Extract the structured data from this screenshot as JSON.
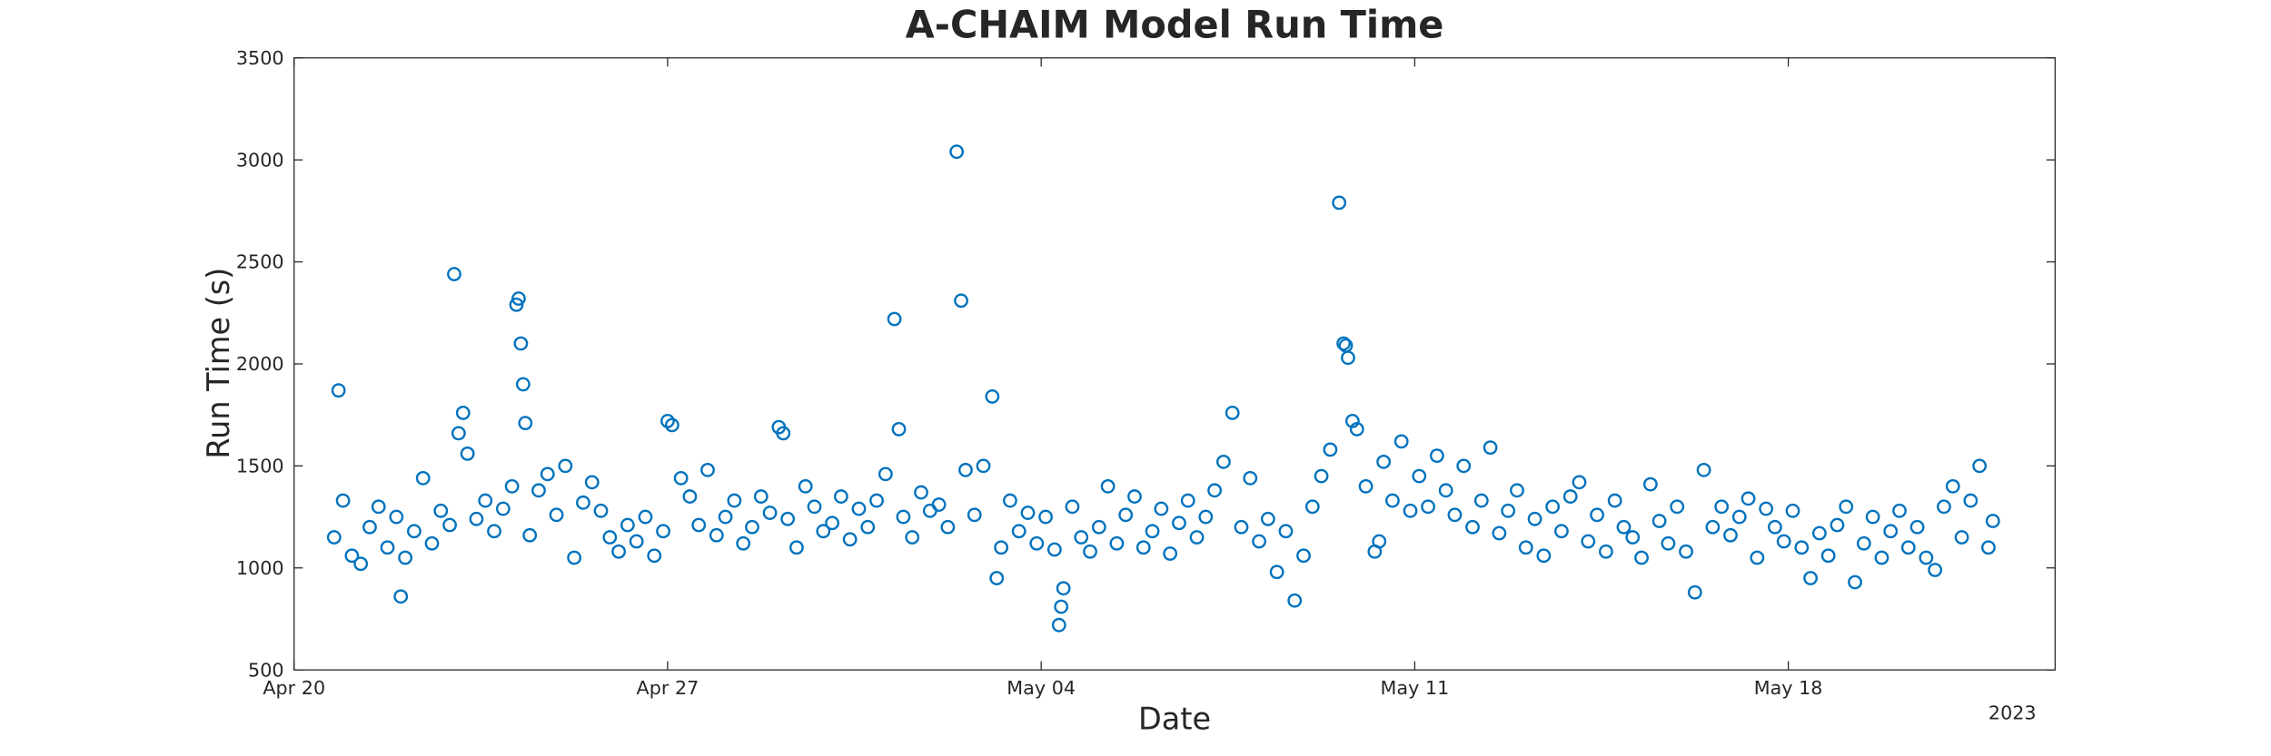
{
  "chart_data": {
    "type": "scatter",
    "title": "A-CHAIM Model Run Time",
    "x_label": "Date",
    "y_label": "Run Time (s)",
    "x_secondary_label": "2023",
    "xlim": [
      "2023-04-20T00:00Z",
      "2023-05-23T00:00Z"
    ],
    "xticks": [
      {
        "value": "2023-04-20T00:00Z",
        "label": "Apr 20"
      },
      {
        "value": "2023-04-27T00:00Z",
        "label": "Apr 27"
      },
      {
        "value": "2023-05-04T00:00Z",
        "label": "May 04"
      },
      {
        "value": "2023-05-11T00:00Z",
        "label": "May 11"
      },
      {
        "value": "2023-05-18T00:00Z",
        "label": "May 18"
      }
    ],
    "ylim": [
      500,
      3500
    ],
    "yticks": [
      500,
      1000,
      1500,
      2000,
      2500,
      3000,
      3500
    ],
    "grid": false,
    "series": [
      {
        "name": "Run Time",
        "color": "#0072bd",
        "x": [
          "2023-04-20T18:00Z",
          "2023-04-20T20:00Z",
          "2023-04-20T22:00Z",
          "2023-04-21T02:00Z",
          "2023-04-21T06:00Z",
          "2023-04-21T10:00Z",
          "2023-04-21T14:00Z",
          "2023-04-21T18:00Z",
          "2023-04-21T22:00Z",
          "2023-04-22T00:00Z",
          "2023-04-22T02:00Z",
          "2023-04-22T06:00Z",
          "2023-04-22T10:00Z",
          "2023-04-22T14:00Z",
          "2023-04-22T18:00Z",
          "2023-04-22T22:00Z",
          "2023-04-23T00:00Z",
          "2023-04-23T02:00Z",
          "2023-04-23T04:00Z",
          "2023-04-23T06:00Z",
          "2023-04-23T10:00Z",
          "2023-04-23T14:00Z",
          "2023-04-23T18:00Z",
          "2023-04-23T22:00Z",
          "2023-04-24T02:00Z",
          "2023-04-24T04:00Z",
          "2023-04-24T05:00Z",
          "2023-04-24T06:00Z",
          "2023-04-24T07:00Z",
          "2023-04-24T08:00Z",
          "2023-04-24T10:00Z",
          "2023-04-24T14:00Z",
          "2023-04-24T18:00Z",
          "2023-04-24T22:00Z",
          "2023-04-25T02:00Z",
          "2023-04-25T06:00Z",
          "2023-04-25T10:00Z",
          "2023-04-25T14:00Z",
          "2023-04-25T18:00Z",
          "2023-04-25T22:00Z",
          "2023-04-26T02:00Z",
          "2023-04-26T06:00Z",
          "2023-04-26T10:00Z",
          "2023-04-26T14:00Z",
          "2023-04-26T18:00Z",
          "2023-04-26T22:00Z",
          "2023-04-27T00:00Z",
          "2023-04-27T02:00Z",
          "2023-04-27T06:00Z",
          "2023-04-27T10:00Z",
          "2023-04-27T14:00Z",
          "2023-04-27T18:00Z",
          "2023-04-27T22:00Z",
          "2023-04-28T02:00Z",
          "2023-04-28T06:00Z",
          "2023-04-28T10:00Z",
          "2023-04-28T14:00Z",
          "2023-04-28T18:00Z",
          "2023-04-28T22:00Z",
          "2023-04-29T02:00Z",
          "2023-04-29T04:00Z",
          "2023-04-29T06:00Z",
          "2023-04-29T10:00Z",
          "2023-04-29T14:00Z",
          "2023-04-29T18:00Z",
          "2023-04-29T22:00Z",
          "2023-04-30T02:00Z",
          "2023-04-30T06:00Z",
          "2023-04-30T10:00Z",
          "2023-04-30T14:00Z",
          "2023-04-30T18:00Z",
          "2023-04-30T22:00Z",
          "2023-05-01T02:00Z",
          "2023-05-01T06:00Z",
          "2023-05-01T08:00Z",
          "2023-05-01T10:00Z",
          "2023-05-01T14:00Z",
          "2023-05-01T18:00Z",
          "2023-05-01T22:00Z",
          "2023-05-02T02:00Z",
          "2023-05-02T06:00Z",
          "2023-05-02T10:00Z",
          "2023-05-02T12:00Z",
          "2023-05-02T14:00Z",
          "2023-05-02T18:00Z",
          "2023-05-02T22:00Z",
          "2023-05-03T02:00Z",
          "2023-05-03T04:00Z",
          "2023-05-03T06:00Z",
          "2023-05-03T10:00Z",
          "2023-05-03T14:00Z",
          "2023-05-03T18:00Z",
          "2023-05-03T22:00Z",
          "2023-05-04T02:00Z",
          "2023-05-04T06:00Z",
          "2023-05-04T08:00Z",
          "2023-05-04T09:00Z",
          "2023-05-04T10:00Z",
          "2023-05-04T14:00Z",
          "2023-05-04T18:00Z",
          "2023-05-04T22:00Z",
          "2023-05-05T02:00Z",
          "2023-05-05T06:00Z",
          "2023-05-05T10:00Z",
          "2023-05-05T14:00Z",
          "2023-05-05T18:00Z",
          "2023-05-05T22:00Z",
          "2023-05-06T02:00Z",
          "2023-05-06T06:00Z",
          "2023-05-06T10:00Z",
          "2023-05-06T14:00Z",
          "2023-05-06T18:00Z",
          "2023-05-06T22:00Z",
          "2023-05-07T02:00Z",
          "2023-05-07T06:00Z",
          "2023-05-07T10:00Z",
          "2023-05-07T14:00Z",
          "2023-05-07T18:00Z",
          "2023-05-07T22:00Z",
          "2023-05-08T02:00Z",
          "2023-05-08T06:00Z",
          "2023-05-08T10:00Z",
          "2023-05-08T14:00Z",
          "2023-05-08T18:00Z",
          "2023-05-08T22:00Z",
          "2023-05-09T02:00Z",
          "2023-05-09T06:00Z",
          "2023-05-09T10:00Z",
          "2023-05-09T14:00Z",
          "2023-05-09T16:00Z",
          "2023-05-09T17:00Z",
          "2023-05-09T18:00Z",
          "2023-05-09T20:00Z",
          "2023-05-09T22:00Z",
          "2023-05-10T02:00Z",
          "2023-05-10T06:00Z",
          "2023-05-10T08:00Z",
          "2023-05-10T10:00Z",
          "2023-05-10T14:00Z",
          "2023-05-10T18:00Z",
          "2023-05-10T22:00Z",
          "2023-05-11T02:00Z",
          "2023-05-11T06:00Z",
          "2023-05-11T10:00Z",
          "2023-05-11T14:00Z",
          "2023-05-11T18:00Z",
          "2023-05-11T22:00Z",
          "2023-05-12T02:00Z",
          "2023-05-12T06:00Z",
          "2023-05-12T10:00Z",
          "2023-05-12T14:00Z",
          "2023-05-12T18:00Z",
          "2023-05-12T22:00Z",
          "2023-05-13T02:00Z",
          "2023-05-13T06:00Z",
          "2023-05-13T10:00Z",
          "2023-05-13T14:00Z",
          "2023-05-13T18:00Z",
          "2023-05-13T22:00Z",
          "2023-05-14T02:00Z",
          "2023-05-14T06:00Z",
          "2023-05-14T10:00Z",
          "2023-05-14T14:00Z",
          "2023-05-14T18:00Z",
          "2023-05-14T22:00Z",
          "2023-05-15T02:00Z",
          "2023-05-15T06:00Z",
          "2023-05-15T10:00Z",
          "2023-05-15T14:00Z",
          "2023-05-15T18:00Z",
          "2023-05-15T22:00Z",
          "2023-05-16T02:00Z",
          "2023-05-16T06:00Z",
          "2023-05-16T10:00Z",
          "2023-05-16T14:00Z",
          "2023-05-16T18:00Z",
          "2023-05-16T22:00Z",
          "2023-05-17T02:00Z",
          "2023-05-17T06:00Z",
          "2023-05-17T10:00Z",
          "2023-05-17T14:00Z",
          "2023-05-17T18:00Z",
          "2023-05-17T22:00Z",
          "2023-05-18T02:00Z",
          "2023-05-18T06:00Z",
          "2023-05-18T10:00Z",
          "2023-05-18T14:00Z",
          "2023-05-18T18:00Z",
          "2023-05-18T22:00Z",
          "2023-05-19T02:00Z",
          "2023-05-19T06:00Z",
          "2023-05-19T10:00Z",
          "2023-05-19T14:00Z",
          "2023-05-19T18:00Z",
          "2023-05-19T22:00Z",
          "2023-05-20T02:00Z",
          "2023-05-20T06:00Z",
          "2023-05-20T10:00Z",
          "2023-05-20T14:00Z",
          "2023-05-20T18:00Z",
          "2023-05-20T22:00Z",
          "2023-05-21T02:00Z",
          "2023-05-21T06:00Z",
          "2023-05-21T10:00Z",
          "2023-05-21T14:00Z",
          "2023-05-21T18:00Z",
          "2023-05-21T20:00Z"
        ],
        "values": [
          1150,
          1870,
          1330,
          1060,
          1020,
          1200,
          1300,
          1100,
          1250,
          860,
          1050,
          1180,
          1440,
          1120,
          1280,
          1210,
          2440,
          1660,
          1760,
          1560,
          1240,
          1330,
          1180,
          1290,
          1400,
          2290,
          2320,
          2100,
          1900,
          1710,
          1160,
          1380,
          1460,
          1260,
          1500,
          1050,
          1320,
          1420,
          1280,
          1150,
          1080,
          1210,
          1130,
          1250,
          1060,
          1180,
          1720,
          1700,
          1440,
          1350,
          1210,
          1480,
          1160,
          1250,
          1330,
          1120,
          1200,
          1350,
          1270,
          1690,
          1660,
          1240,
          1100,
          1400,
          1300,
          1180,
          1220,
          1350,
          1140,
          1290,
          1200,
          1330,
          1460,
          2220,
          1680,
          1250,
          1150,
          1370,
          1280,
          1310,
          1200,
          3040,
          2310,
          1480,
          1260,
          1500,
          1840,
          950,
          1100,
          1330,
          1180,
          1270,
          1120,
          1250,
          1090,
          720,
          810,
          900,
          1300,
          1150,
          1080,
          1200,
          1400,
          1120,
          1260,
          1350,
          1100,
          1180,
          1290,
          1070,
          1220,
          1330,
          1150,
          1250,
          1380,
          1520,
          1760,
          1200,
          1440,
          1130,
          1240,
          980,
          1180,
          840,
          1060,
          1300,
          1450,
          1580,
          2790,
          2100,
          2090,
          2030,
          1720,
          1680,
          1400,
          1080,
          1130,
          1520,
          1330,
          1620,
          1280,
          1450,
          1300,
          1550,
          1380,
          1260,
          1500,
          1200,
          1330,
          1590,
          1170,
          1280,
          1380,
          1100,
          1240,
          1060,
          1300,
          1180,
          1350,
          1420,
          1130,
          1260,
          1080,
          1330,
          1200,
          1150,
          1050,
          1410,
          1230,
          1120,
          1300,
          1080,
          880,
          1480,
          1200,
          1300,
          1160,
          1250,
          1340,
          1050,
          1290,
          1200,
          1130,
          1280,
          1100,
          950,
          1170,
          1060,
          1210,
          1300,
          930,
          1120,
          1250,
          1050,
          1180,
          1280,
          1100,
          1200,
          1050,
          990,
          1300,
          1400,
          1150,
          1330,
          1500,
          1100,
          1230
        ]
      }
    ]
  }
}
